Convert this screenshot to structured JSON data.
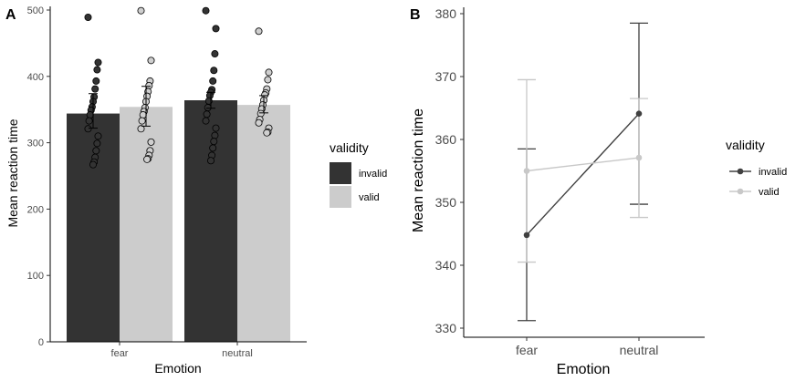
{
  "chart_data": [
    {
      "panel_label": "A",
      "type": "bar",
      "categories": [
        "fear",
        "neutral"
      ],
      "xlabel": "Emotion",
      "ylabel": "Mean reaction time",
      "ylim": [
        0,
        500
      ],
      "yticks": [
        0,
        100,
        200,
        300,
        400,
        500
      ],
      "grid": false,
      "legend": {
        "title": "validity",
        "placement": "right"
      },
      "series": [
        {
          "name": "invalid",
          "color": "#333333",
          "values": [
            344,
            364
          ],
          "errors": [
            [
              322,
              374
            ],
            [
              352,
              376
            ]
          ],
          "points": [
            [
              489,
              421,
              410,
              393,
              381,
              369,
              362,
              354,
              349,
              342,
              333,
              321,
              310,
              299,
              288,
              278,
              271,
              267
            ],
            [
              499,
              472,
              434,
              409,
              393,
              380,
              376,
              371,
              363,
              353,
              343,
              333,
              322,
              311,
              302,
              292,
              281,
              273
            ]
          ]
        },
        {
          "name": "valid",
          "color": "#cccccc",
          "values": [
            354,
            357
          ],
          "errors": [
            [
              325,
              385
            ],
            [
              345,
              371
            ]
          ],
          "points": [
            [
              499,
              424,
              393,
              386,
              377,
              370,
              362,
              353,
              347,
              342,
              333,
              321,
              301,
              288,
              281,
              276,
              275
            ],
            [
              468,
              406,
              395,
              381,
              375,
              372,
              364,
              357,
              351,
              344,
              335,
              330,
              322,
              316,
              315
            ]
          ]
        }
      ]
    },
    {
      "panel_label": "B",
      "type": "line",
      "categories": [
        "fear",
        "neutral"
      ],
      "xlabel": "Emotion",
      "ylabel": "Mean reaction time",
      "ylim": [
        330,
        380
      ],
      "yticks": [
        330,
        340,
        350,
        360,
        370,
        380
      ],
      "grid": false,
      "legend": {
        "title": "validity",
        "placement": "right"
      },
      "series": [
        {
          "name": "invalid",
          "color": "#404040",
          "values": [
            344.8,
            364.1
          ],
          "errors": [
            [
              331.2,
              358.5
            ],
            [
              349.7,
              378.5
            ]
          ]
        },
        {
          "name": "valid",
          "color": "#c8c8c8",
          "values": [
            355.0,
            357.1
          ],
          "errors": [
            [
              340.5,
              369.5
            ],
            [
              347.6,
              366.5
            ]
          ]
        }
      ]
    }
  ]
}
